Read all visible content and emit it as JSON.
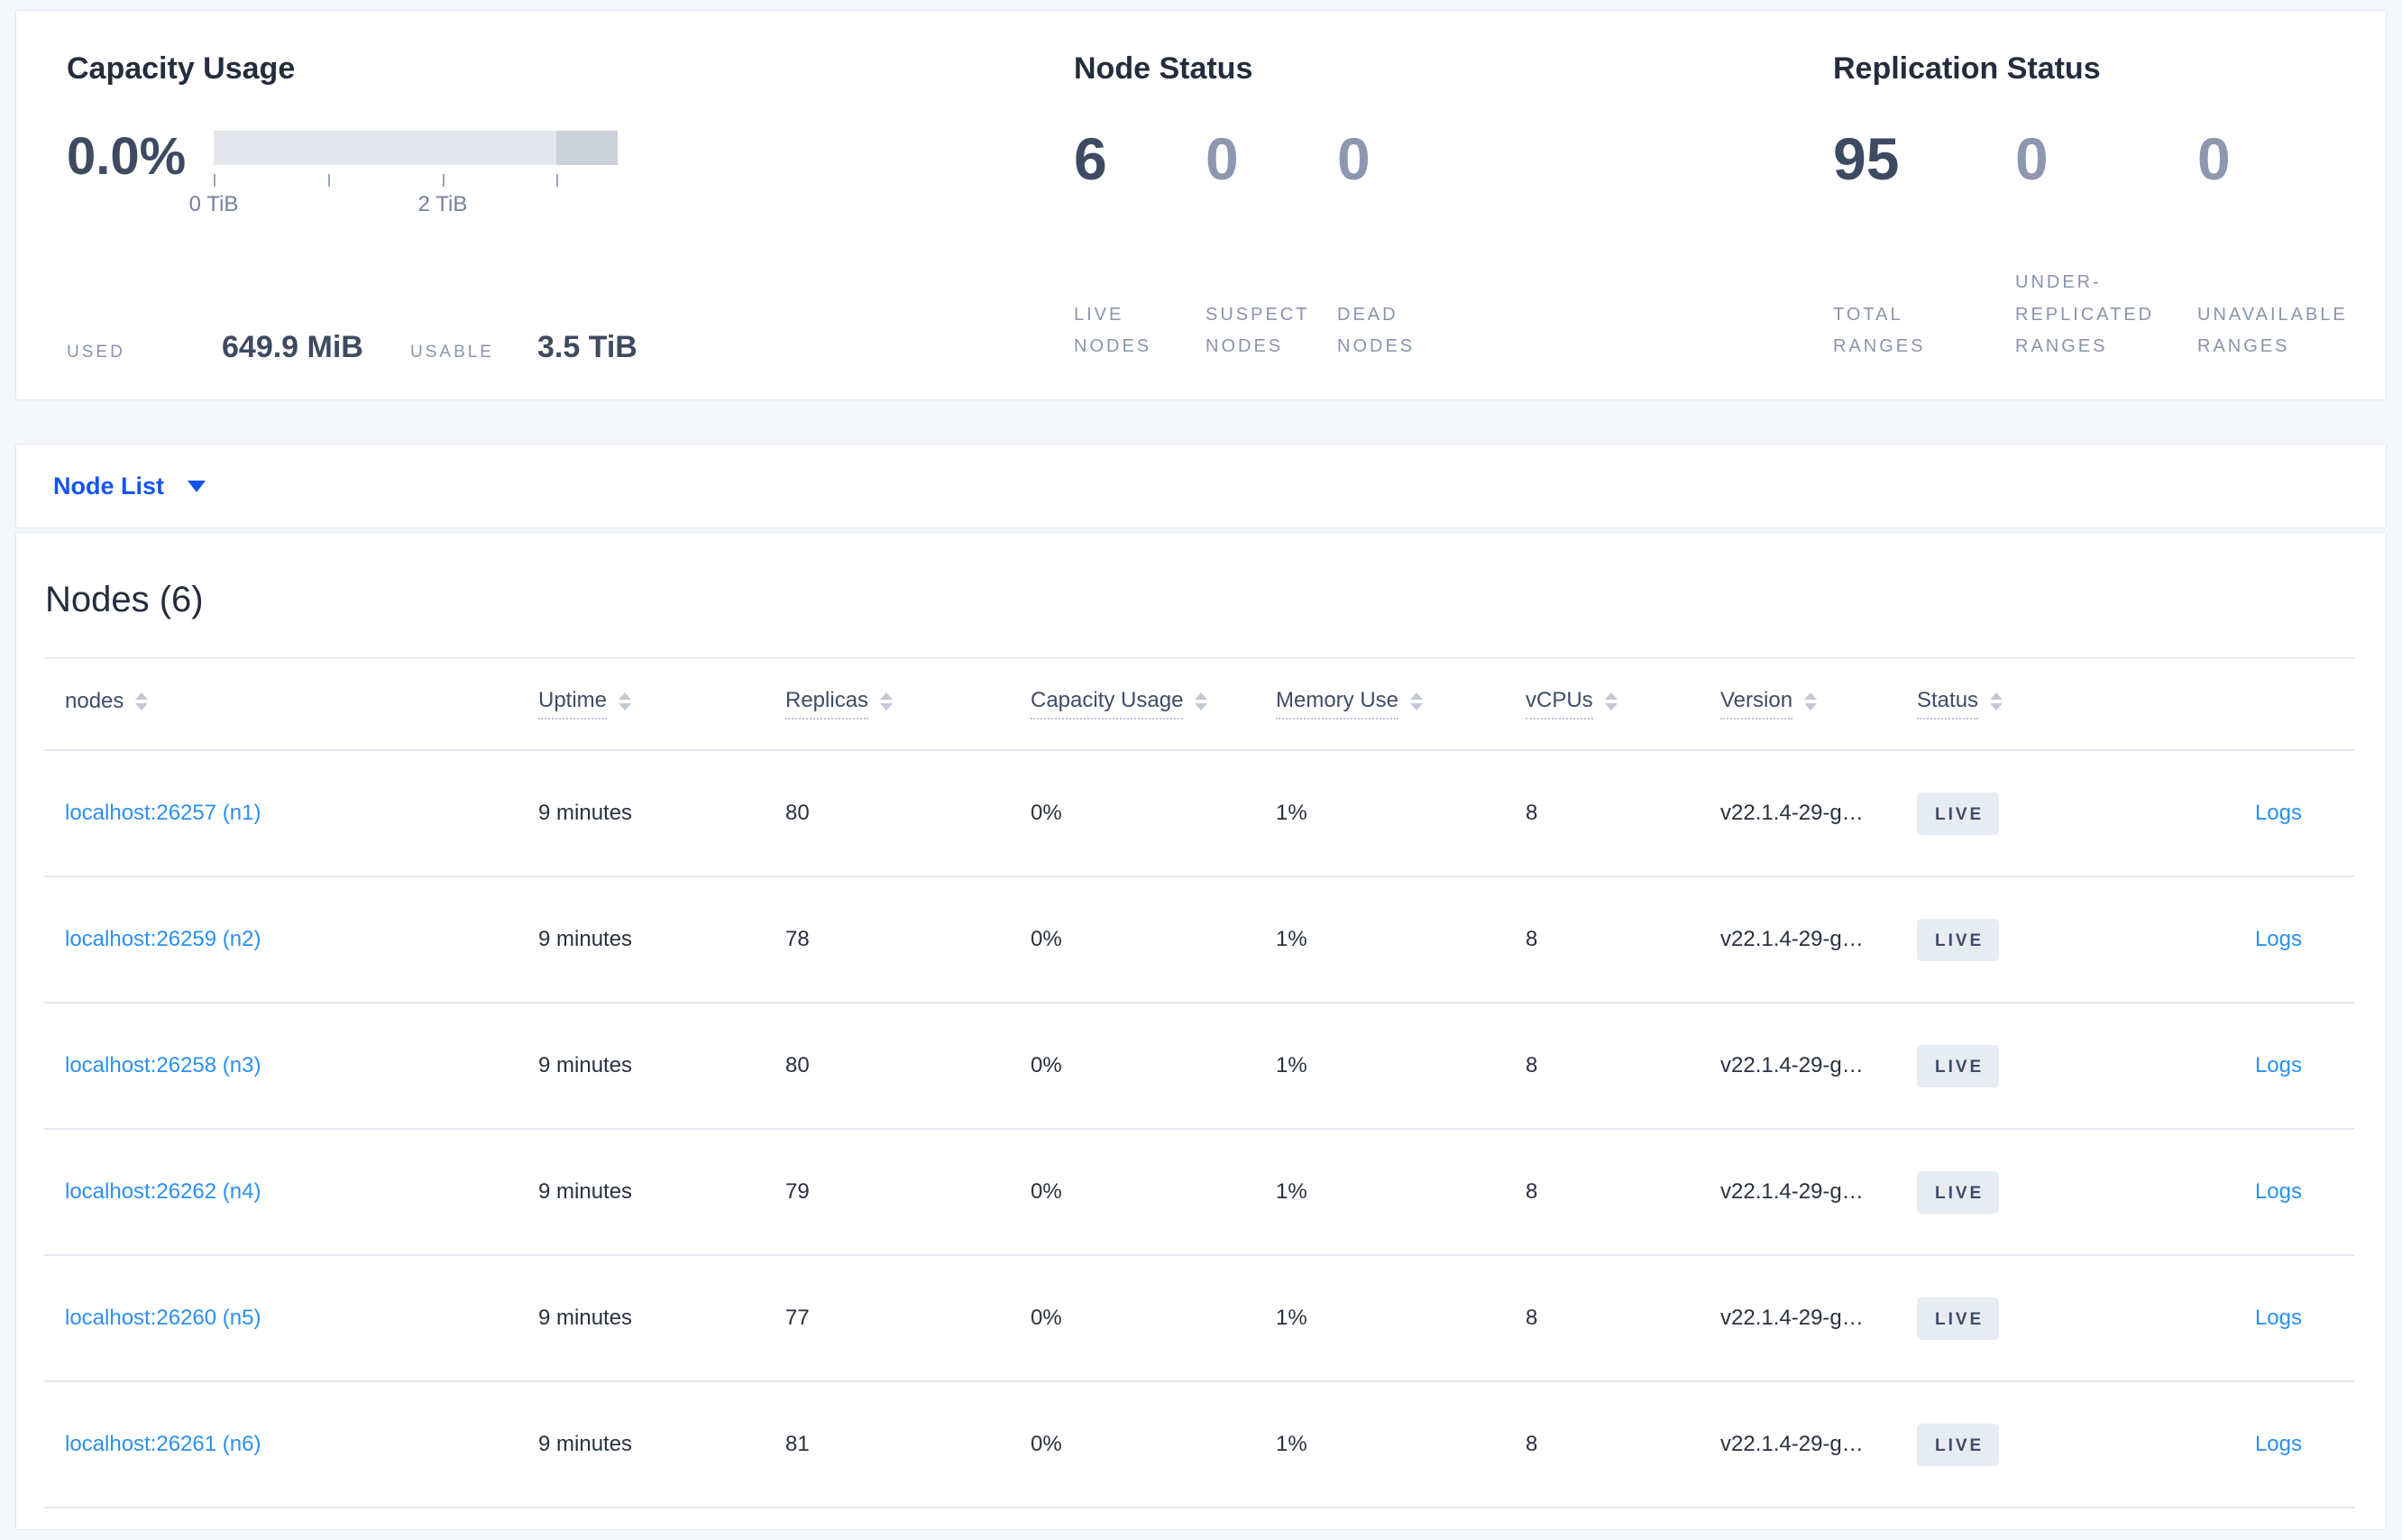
{
  "colors": {
    "page-bg": "#f4f6fa",
    "primary-blue": "#1454f0",
    "link-blue": "#2a90f2",
    "title": "#242d3d",
    "number-dark": "#3e4a61",
    "number-muted": "#8d97b0",
    "label-muted": "#8a94ab",
    "bar-light": "#e4e7ed",
    "bar-dark": "#ccd1dc",
    "badge-bg": "#e7ebf2",
    "row-divider": "#e3e7ed"
  },
  "summary": {
    "capacity": {
      "title": "Capacity Usage",
      "percent": "0.0%",
      "axis_ticks": [
        {
          "pos": 0,
          "label": "0 TiB"
        },
        {
          "pos": 28.3,
          "label": ""
        },
        {
          "pos": 56.7,
          "label": "2 TiB"
        },
        {
          "pos": 84.8,
          "label": ""
        }
      ],
      "used_label": "USED",
      "used_value": "649.9 MiB",
      "usable_label": "USABLE",
      "usable_value": "3.5 TiB"
    },
    "node_status": {
      "title": "Node Status",
      "stats": [
        {
          "value": "6",
          "label": "LIVE\nNODES",
          "emphasis": true
        },
        {
          "value": "0",
          "label": "SUSPECT\nNODES",
          "emphasis": false
        },
        {
          "value": "0",
          "label": "DEAD\nNODES",
          "emphasis": false
        }
      ]
    },
    "replication": {
      "title": "Replication Status",
      "stats": [
        {
          "value": "95",
          "label": "TOTAL\nRANGES",
          "emphasis": true
        },
        {
          "value": "0",
          "label": "UNDER-\nREPLICATED\nRANGES",
          "emphasis": false
        },
        {
          "value": "0",
          "label": "UNAVAILABLE\nRANGES",
          "emphasis": false
        }
      ]
    }
  },
  "view_selector": {
    "label": "Node List"
  },
  "nodes": {
    "title": "Nodes (6)",
    "columns": [
      {
        "label": "nodes",
        "underline": false
      },
      {
        "label": "Uptime",
        "underline": true
      },
      {
        "label": "Replicas",
        "underline": true
      },
      {
        "label": "Capacity Usage",
        "underline": true
      },
      {
        "label": "Memory Use",
        "underline": true
      },
      {
        "label": "vCPUs",
        "underline": true
      },
      {
        "label": "Version",
        "underline": true
      },
      {
        "label": "Status",
        "underline": true
      },
      {
        "label": "",
        "underline": false
      }
    ],
    "rows": [
      {
        "node": "localhost:26257 (n1)",
        "uptime": "9 minutes",
        "replicas": "80",
        "capacity_usage": "0%",
        "memory_use": "1%",
        "vcpus": "8",
        "version": "v22.1.4-29-g…",
        "status": "LIVE",
        "logs": "Logs"
      },
      {
        "node": "localhost:26259 (n2)",
        "uptime": "9 minutes",
        "replicas": "78",
        "capacity_usage": "0%",
        "memory_use": "1%",
        "vcpus": "8",
        "version": "v22.1.4-29-g…",
        "status": "LIVE",
        "logs": "Logs"
      },
      {
        "node": "localhost:26258 (n3)",
        "uptime": "9 minutes",
        "replicas": "80",
        "capacity_usage": "0%",
        "memory_use": "1%",
        "vcpus": "8",
        "version": "v22.1.4-29-g…",
        "status": "LIVE",
        "logs": "Logs"
      },
      {
        "node": "localhost:26262 (n4)",
        "uptime": "9 minutes",
        "replicas": "79",
        "capacity_usage": "0%",
        "memory_use": "1%",
        "vcpus": "8",
        "version": "v22.1.4-29-g…",
        "status": "LIVE",
        "logs": "Logs"
      },
      {
        "node": "localhost:26260 (n5)",
        "uptime": "9 minutes",
        "replicas": "77",
        "capacity_usage": "0%",
        "memory_use": "1%",
        "vcpus": "8",
        "version": "v22.1.4-29-g…",
        "status": "LIVE",
        "logs": "Logs"
      },
      {
        "node": "localhost:26261 (n6)",
        "uptime": "9 minutes",
        "replicas": "81",
        "capacity_usage": "0%",
        "memory_use": "1%",
        "vcpus": "8",
        "version": "v22.1.4-29-g…",
        "status": "LIVE",
        "logs": "Logs"
      }
    ]
  }
}
